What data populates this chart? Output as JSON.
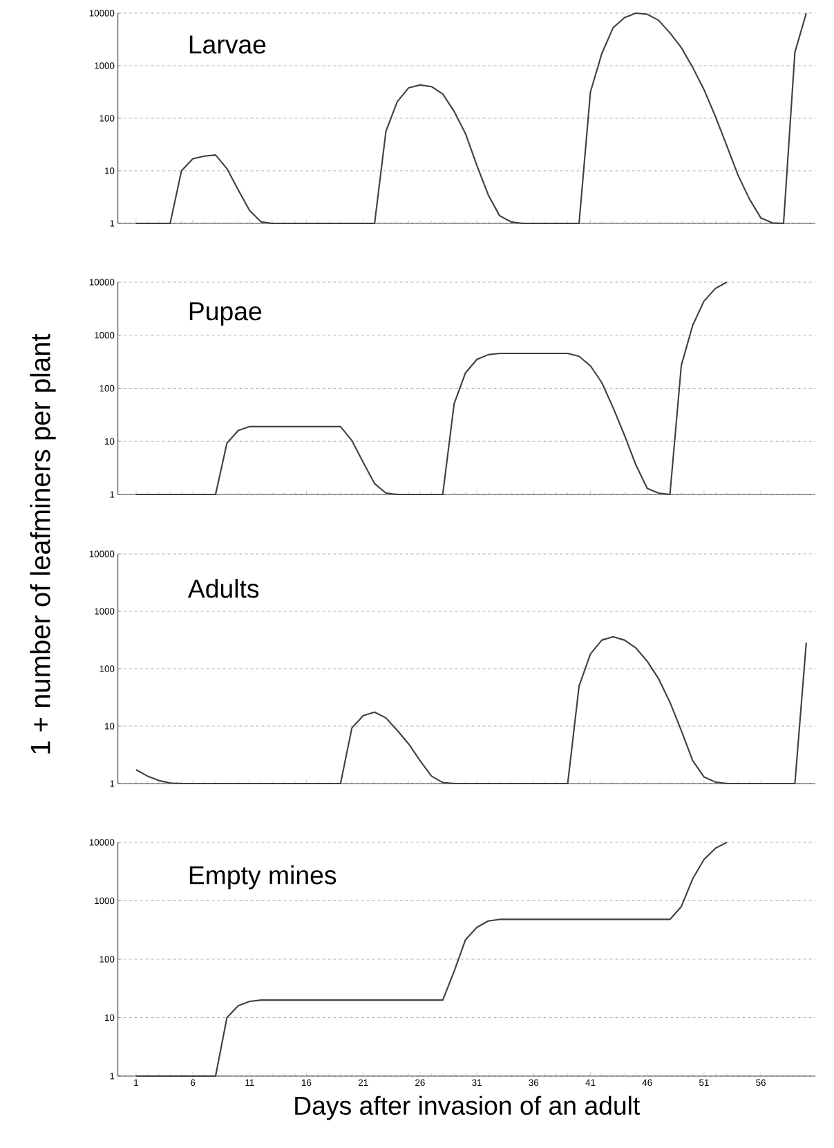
{
  "chart_data": [
    {
      "type": "line",
      "title": "Larvae",
      "ylabel": "1 + number of leafminers per plant",
      "log": "y",
      "grid": "y",
      "tick_labels": "y",
      "xlim": [
        -0.6,
        60.8
      ],
      "xticks": [
        1,
        6,
        11,
        16,
        21,
        26,
        31,
        36,
        41,
        46,
        51,
        56
      ],
      "ylim": [
        1,
        10000
      ],
      "yticks": [
        1,
        10,
        100,
        1000,
        10000
      ],
      "x": [
        1,
        2,
        3,
        4,
        5,
        6,
        7,
        8,
        9,
        10,
        11,
        12,
        13,
        14,
        15,
        16,
        17,
        18,
        19,
        20,
        21,
        22,
        23,
        24,
        25,
        26,
        27,
        28,
        29,
        30,
        31,
        32,
        33,
        34,
        35,
        36,
        37,
        38,
        39,
        40,
        41,
        42,
        43,
        44,
        45,
        46,
        47,
        48,
        49,
        50,
        51,
        52,
        53,
        54,
        55,
        56,
        57,
        58,
        59,
        60
      ],
      "series": [
        {
          "color": "#404040",
          "values": [
            1,
            1,
            1,
            1,
            10,
            17,
            19,
            20,
            11,
            4.3,
            1.75,
            1.07,
            1,
            1,
            1,
            1,
            1,
            1,
            1,
            1,
            1,
            1,
            57,
            208,
            380,
            430,
            400,
            290,
            135,
            51,
            12.7,
            3.5,
            1.4,
            1.07,
            1,
            1,
            1,
            1,
            1,
            1,
            316,
            1700,
            5300,
            8200,
            10000,
            9500,
            7300,
            4200,
            2200,
            930,
            350,
            108,
            30,
            8.2,
            2.9,
            1.27,
            1.02,
            1,
            1800,
            10000
          ]
        }
      ]
    },
    {
      "type": "line",
      "title": "Pupae",
      "log": "y",
      "grid": "y",
      "tick_labels": "y",
      "xlim": [
        -0.6,
        60.8
      ],
      "xticks": [
        1,
        6,
        11,
        16,
        21,
        26,
        31,
        36,
        41,
        46,
        51,
        56
      ],
      "ylim": [
        1,
        10000
      ],
      "yticks": [
        1,
        10,
        100,
        1000,
        10000
      ],
      "x": [
        1,
        2,
        3,
        4,
        5,
        6,
        7,
        8,
        9,
        10,
        11,
        12,
        13,
        14,
        15,
        16,
        17,
        18,
        19,
        20,
        21,
        22,
        23,
        24,
        25,
        26,
        27,
        28,
        29,
        30,
        31,
        32,
        33,
        34,
        35,
        36,
        37,
        38,
        39,
        40,
        41,
        42,
        43,
        44,
        45,
        46,
        47,
        48,
        49,
        50,
        51,
        52,
        53
      ],
      "series": [
        {
          "color": "#404040",
          "values": [
            1,
            1,
            1,
            1,
            1,
            1,
            1,
            1,
            9.3,
            16,
            19,
            19,
            19,
            19,
            19,
            19,
            19,
            19,
            19,
            10.4,
            4,
            1.6,
            1.06,
            1,
            1,
            1,
            1,
            1,
            51,
            195,
            350,
            430,
            455,
            455,
            455,
            455,
            455,
            455,
            455,
            400,
            265,
            128,
            43,
            13,
            3.6,
            1.3,
            1.06,
            1,
            270,
            1530,
            4400,
            7600,
            10000
          ]
        }
      ]
    },
    {
      "type": "line",
      "title": "Adults",
      "log": "y",
      "grid": "y",
      "tick_labels": "y",
      "xlim": [
        -0.6,
        60.8
      ],
      "xticks": [
        1,
        6,
        11,
        16,
        21,
        26,
        31,
        36,
        41,
        46,
        51,
        56
      ],
      "ylim": [
        1,
        10000
      ],
      "yticks": [
        1,
        10,
        100,
        1000,
        10000
      ],
      "x": [
        1,
        2,
        3,
        4,
        5,
        6,
        7,
        8,
        9,
        10,
        11,
        12,
        13,
        14,
        15,
        16,
        17,
        18,
        19,
        20,
        21,
        22,
        23,
        24,
        25,
        26,
        27,
        28,
        29,
        30,
        31,
        32,
        33,
        34,
        35,
        36,
        37,
        38,
        39,
        40,
        41,
        42,
        43,
        44,
        45,
        46,
        47,
        48,
        49,
        50,
        51,
        52,
        53,
        54,
        55,
        56,
        57,
        58,
        59,
        60
      ],
      "series": [
        {
          "color": "#404040",
          "values": [
            1.74,
            1.35,
            1.13,
            1.02,
            1,
            1,
            1,
            1,
            1,
            1,
            1,
            1,
            1,
            1,
            1,
            1,
            1,
            1,
            1,
            9.3,
            15.3,
            17.5,
            13.9,
            8.4,
            4.9,
            2.5,
            1.35,
            1.04,
            1,
            1,
            1,
            1,
            1,
            1,
            1,
            1,
            1,
            1,
            1,
            50,
            181,
            315,
            360,
            315,
            230,
            135,
            67,
            26,
            8.4,
            2.5,
            1.3,
            1.06,
            1,
            1,
            1,
            1,
            1,
            1,
            1,
            285
          ]
        }
      ]
    },
    {
      "type": "line",
      "title": "Empty mines",
      "xlabel": "Days after invasion of an adult",
      "log": "y",
      "grid": "y",
      "xlim": [
        -0.6,
        60.8
      ],
      "xticks": [
        1,
        6,
        11,
        16,
        21,
        26,
        31,
        36,
        41,
        46,
        51,
        56
      ],
      "ylim": [
        1,
        10000
      ],
      "yticks": [
        1,
        10,
        100,
        1000,
        10000
      ],
      "x": [
        1,
        2,
        3,
        4,
        5,
        6,
        7,
        8,
        9,
        10,
        11,
        12,
        13,
        14,
        15,
        16,
        17,
        18,
        19,
        20,
        21,
        22,
        23,
        24,
        25,
        26,
        27,
        28,
        29,
        30,
        31,
        32,
        33,
        34,
        35,
        36,
        37,
        38,
        39,
        40,
        41,
        42,
        43,
        44,
        45,
        46,
        47,
        48,
        49,
        50,
        51,
        52,
        53
      ],
      "series": [
        {
          "color": "#404040",
          "values": [
            1,
            1,
            1,
            1,
            1,
            1,
            1,
            1,
            10,
            16,
            19,
            20,
            20,
            20,
            20,
            20,
            20,
            20,
            20,
            20,
            20,
            20,
            20,
            20,
            20,
            20,
            20,
            20,
            62,
            215,
            350,
            450,
            480,
            480,
            480,
            480,
            480,
            480,
            480,
            480,
            480,
            480,
            480,
            480,
            480,
            480,
            480,
            480,
            795,
            2370,
            5100,
            7900,
            10000
          ]
        }
      ]
    }
  ]
}
